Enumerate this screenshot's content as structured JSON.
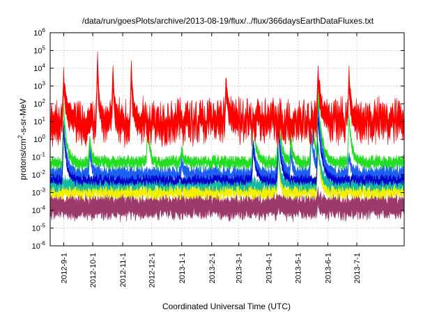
{
  "chart_data": {
    "type": "line",
    "title": "/data/run/goesPlots/archive/2013-08-19/flux/../flux/366daysEarthDataFluxes.txt",
    "xlabel": "Coordinated Universal Time (UTC)",
    "ylabel_base": "protons/cm",
    "ylabel_sup": "2",
    "ylabel_rest": "-s-sr-MeV",
    "yscale": "log",
    "ylim_exp": [
      -6,
      6
    ],
    "y_ticks": [
      {
        "base": "10",
        "exp": "-6"
      },
      {
        "base": "10",
        "exp": "-5"
      },
      {
        "base": "10",
        "exp": "-4"
      },
      {
        "base": "10",
        "exp": "-3"
      },
      {
        "base": "10",
        "exp": "-2"
      },
      {
        "base": "10",
        "exp": "-1"
      },
      {
        "base": "10",
        "exp": "0"
      },
      {
        "base": "10",
        "exp": "1"
      },
      {
        "base": "10",
        "exp": "2"
      },
      {
        "base": "10",
        "exp": "3"
      },
      {
        "base": "10",
        "exp": "4"
      },
      {
        "base": "10",
        "exp": "5"
      },
      {
        "base": "10",
        "exp": "6"
      }
    ],
    "x_range": [
      "2012-08-18",
      "2013-08-19"
    ],
    "x_ticks": [
      {
        "label": "2012-9-1",
        "date": "2012-09-01"
      },
      {
        "label": "2012-10-1",
        "date": "2012-10-01"
      },
      {
        "label": "2012-11-1",
        "date": "2012-11-01"
      },
      {
        "label": "2012-12-1",
        "date": "2012-12-01"
      },
      {
        "label": "2013-1-1",
        "date": "2013-01-01"
      },
      {
        "label": "2013-2-1",
        "date": "2013-02-01"
      },
      {
        "label": "2013-3-1",
        "date": "2013-03-01"
      },
      {
        "label": "2013-4-1",
        "date": "2013-04-01"
      },
      {
        "label": "2013-5-1",
        "date": "2013-05-01"
      },
      {
        "label": "2013-6-1",
        "date": "2013-06-01"
      },
      {
        "label": "2013-7-1",
        "date": "2013-07-01"
      }
    ],
    "grid": true,
    "series": [
      {
        "color": "#9b3a6b",
        "baseline_log": -3.8,
        "noise": 0.25,
        "band": 0.9,
        "events": [
          {
            "date": "2013-04-11",
            "peak_log": -3.5,
            "width": 1.5
          },
          {
            "date": "2013-05-22",
            "peak_log": -3.3,
            "width": 2
          }
        ]
      },
      {
        "color": "#f0f000",
        "baseline_log": -2.95,
        "noise": 0.2,
        "band": 0.45,
        "events": [
          {
            "date": "2013-04-11",
            "peak_log": -1.0,
            "width": 2
          },
          {
            "date": "2013-05-22",
            "peak_log": -0.5,
            "width": 3
          }
        ]
      },
      {
        "color": "#16b8a0",
        "baseline_log": -2.5,
        "noise": 0.2,
        "band": 0.45,
        "events": [
          {
            "date": "2013-04-11",
            "peak_log": -0.8,
            "width": 2
          },
          {
            "date": "2013-05-22",
            "peak_log": -0.3,
            "width": 3
          }
        ]
      },
      {
        "color": "#1e5ef0",
        "baseline_log": -2.0,
        "noise": 0.25,
        "band": 0.55,
        "events": [
          {
            "date": "2012-09-01",
            "peak_log": 0.8,
            "width": 3
          },
          {
            "date": "2012-09-28",
            "peak_log": -0.5,
            "width": 2
          },
          {
            "date": "2013-01-01",
            "peak_log": -1.2,
            "width": 2
          },
          {
            "date": "2013-03-16",
            "peak_log": -0.3,
            "width": 3
          },
          {
            "date": "2013-04-11",
            "peak_log": 1.0,
            "width": 3
          },
          {
            "date": "2013-04-24",
            "peak_log": -0.8,
            "width": 2
          },
          {
            "date": "2013-05-15",
            "peak_log": 0.2,
            "width": 4
          },
          {
            "date": "2013-05-22",
            "peak_log": 2.0,
            "width": 4
          },
          {
            "date": "2013-06-23",
            "peak_log": -0.8,
            "width": 2
          }
        ]
      },
      {
        "color": "#0000cc",
        "baseline_log": -2.3,
        "noise": 0.2,
        "band": 0.25,
        "events": [
          {
            "date": "2012-09-01",
            "peak_log": 0.5,
            "width": 3
          },
          {
            "date": "2013-03-16",
            "peak_log": -0.5,
            "width": 3
          },
          {
            "date": "2013-04-11",
            "peak_log": 0.5,
            "width": 3
          },
          {
            "date": "2013-05-22",
            "peak_log": 1.2,
            "width": 4
          }
        ]
      },
      {
        "color": "#22dd22",
        "baseline_log": -1.3,
        "noise": 0.2,
        "band": 0.4,
        "events": [
          {
            "date": "2012-09-01",
            "peak_log": 1.8,
            "width": 3
          },
          {
            "date": "2012-09-28",
            "peak_log": 0.0,
            "width": 2
          },
          {
            "date": "2012-11-27",
            "peak_log": 1.0,
            "width": 2
          },
          {
            "date": "2013-01-01",
            "peak_log": -0.6,
            "width": 2
          },
          {
            "date": "2013-03-16",
            "peak_log": 1.2,
            "width": 3
          },
          {
            "date": "2013-04-11",
            "peak_log": 1.5,
            "width": 3
          },
          {
            "date": "2013-04-24",
            "peak_log": 0.0,
            "width": 2
          },
          {
            "date": "2013-05-15",
            "peak_log": 1.2,
            "width": 4
          },
          {
            "date": "2013-05-22",
            "peak_log": 2.5,
            "width": 4
          },
          {
            "date": "2013-06-23",
            "peak_log": 1.2,
            "width": 3
          }
        ]
      },
      {
        "color": "#ff0000",
        "baseline_log": 1.0,
        "noise": 0.75,
        "band": 1.1,
        "events": [
          {
            "date": "2012-09-01",
            "peak_log": 3.3,
            "width": 3
          },
          {
            "date": "2012-10-06",
            "peak_log": 4.2,
            "width": 1.5
          },
          {
            "date": "2012-10-22",
            "peak_log": 3.5,
            "width": 1.5
          },
          {
            "date": "2012-11-10",
            "peak_log": 3.8,
            "width": 1.5
          },
          {
            "date": "2013-02-16",
            "peak_log": 3.1,
            "width": 2
          },
          {
            "date": "2013-05-22",
            "peak_log": 3.6,
            "width": 3
          },
          {
            "date": "2013-06-23",
            "peak_log": 3.3,
            "width": 2
          }
        ]
      }
    ]
  }
}
